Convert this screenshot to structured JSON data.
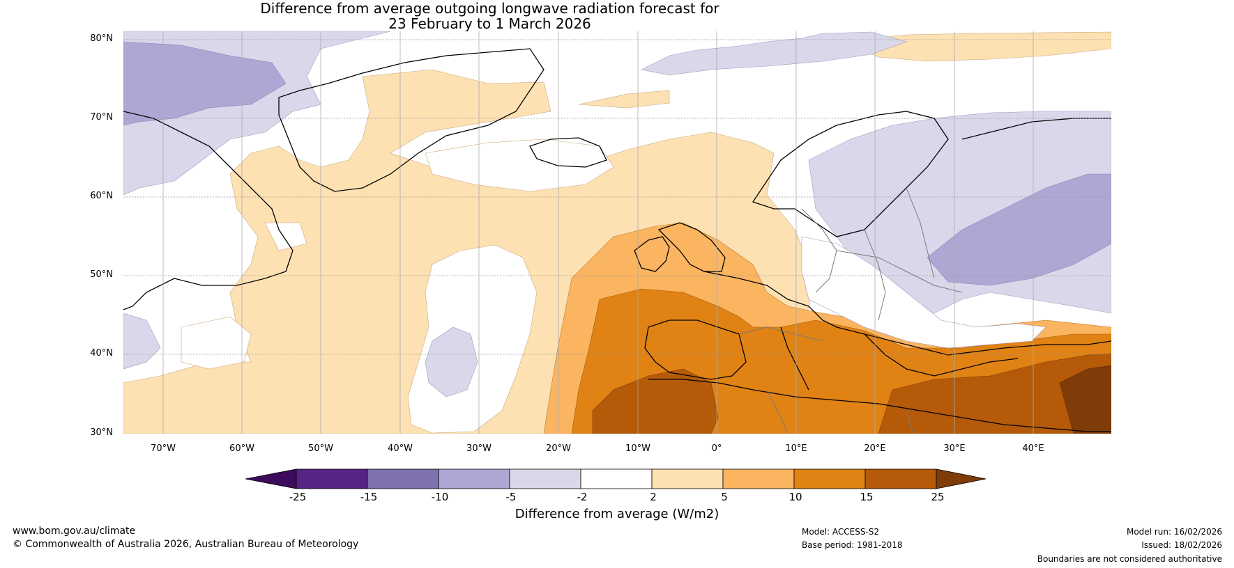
{
  "title_line1": "Difference from average outgoing longwave radiation forecast for",
  "title_line2": "23 February to 1 March 2026",
  "lat_labels": [
    "80°N",
    "70°N",
    "60°N",
    "50°N",
    "40°N",
    "30°N"
  ],
  "lon_labels": [
    "70°W",
    "60°W",
    "50°W",
    "40°W",
    "30°W",
    "20°W",
    "10°W",
    "0°",
    "10°E",
    "20°E",
    "30°E",
    "40°E"
  ],
  "colorbar": {
    "ticks": [
      "-25",
      "-15",
      "-10",
      "-5",
      "-2",
      "2",
      "5",
      "10",
      "15",
      "25"
    ],
    "colors": [
      "#3d0b5c",
      "#572486",
      "#7f70ae",
      "#aea6d3",
      "#d9d8ea",
      "#ffffff",
      "#fde1b3",
      "#fbb460",
      "#e08214",
      "#b55a08",
      "#7f3b08"
    ],
    "label": "Difference from average (W/m2)"
  },
  "map": {
    "lon_range": [
      -75,
      50
    ],
    "lat_range": [
      30,
      81
    ],
    "anomaly_regions": [
      {
        "name": "greenland-north-west-negative",
        "level": -5
      },
      {
        "name": "arctic-north-negative",
        "level": -5
      },
      {
        "name": "north-atlantic-positive",
        "level": 2
      },
      {
        "name": "iceland-sea-positive",
        "level": 2
      },
      {
        "name": "mid-atlantic-neutral",
        "level": 0
      },
      {
        "name": "azores-negative",
        "level": -5
      },
      {
        "name": "europe-west-positive",
        "level": 5
      },
      {
        "name": "iberia-north-africa-positive",
        "level": 10
      },
      {
        "name": "sahara-positive",
        "level": 15
      },
      {
        "name": "middle-east-positive",
        "level": 25
      },
      {
        "name": "scandinavia-russia-negative",
        "level": -5
      },
      {
        "name": "russia-central-negative",
        "level": -10
      },
      {
        "name": "eastern-europe-neutral",
        "level": 0
      }
    ]
  },
  "footer": {
    "website": "www.bom.gov.au/climate",
    "copyright": "© Commonwealth of Australia 2026, Australian Bureau of Meteorology",
    "model": "Model: ACCESS-S2",
    "base_period": "Base period: 1981-2018",
    "model_run": "Model run: 16/02/2026",
    "issued": "Issued: 18/02/2026",
    "disclaimer": "Boundaries are not considered authoritative"
  }
}
